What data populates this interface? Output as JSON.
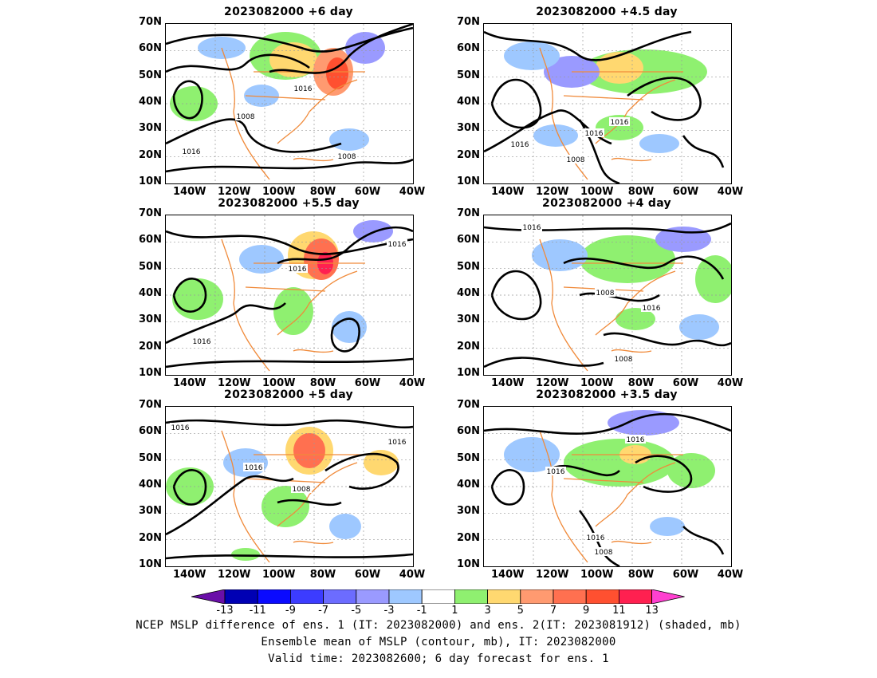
{
  "panels": [
    {
      "title": "2023082000  +6 day",
      "contour_labels": [
        "1016",
        "1008",
        "1016",
        "1008"
      ]
    },
    {
      "title": "2023082000  +4.5 day",
      "contour_labels": [
        "1016",
        "1016",
        "1016",
        "1008"
      ]
    },
    {
      "title": "2023082000  +5.5 day",
      "contour_labels": [
        "1016",
        "1016",
        "1016"
      ]
    },
    {
      "title": "2023082000  +4 day",
      "contour_labels": [
        "1016",
        "1008",
        "1016",
        "1008"
      ]
    },
    {
      "title": "2023082000  +5 day",
      "contour_labels": [
        "1016",
        "1016",
        "1008",
        "1016"
      ]
    },
    {
      "title": "2023082000  +3.5 day",
      "contour_labels": [
        "1016",
        "1016",
        "1016",
        "1008"
      ]
    }
  ],
  "axes": {
    "lat_ticks": [
      "70N",
      "60N",
      "50N",
      "40N",
      "30N",
      "20N",
      "10N"
    ],
    "lon_ticks": [
      "140W",
      "120W",
      "100W",
      "80W",
      "60W",
      "40W"
    ]
  },
  "colorbar": {
    "labels": [
      "-13",
      "-11",
      "-9",
      "-7",
      "-5",
      "-3",
      "-1",
      "1",
      "3",
      "5",
      "7",
      "9",
      "11",
      "13"
    ],
    "colors": [
      "#6a0fa8",
      "#0000b4",
      "#0a0aff",
      "#3c3cff",
      "#6c6cff",
      "#9a9aff",
      "#9ec8ff",
      "#ffffff",
      "#8ff070",
      "#ffd870",
      "#ff9a70",
      "#ff7050",
      "#ff5030",
      "#ff2050",
      "#ff40d0"
    ]
  },
  "caption": {
    "line1": "NCEP MSLP difference of ens. 1 (IT: 2023082000) and ens. 2(IT: 2023081912) (shaded, mb)",
    "line2": "Ensemble mean of MSLP (contour, mb), IT: 2023082000",
    "line3": "Valid time: 2023082600; 6 day forecast for ens. 1"
  }
}
